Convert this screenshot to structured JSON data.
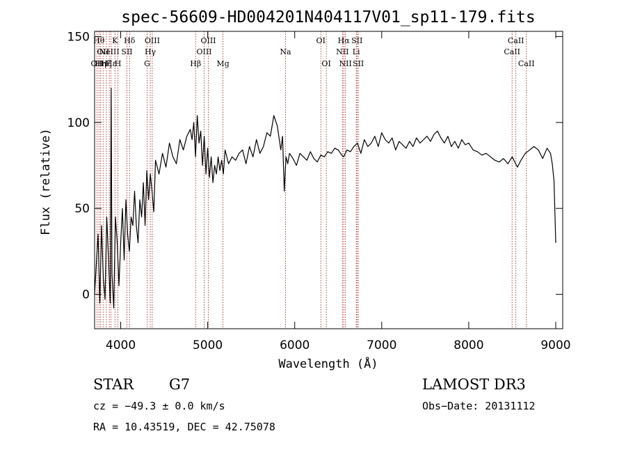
{
  "chart_data": {
    "type": "line",
    "title": "spec-56609-HD004201N404117V01_sp11-179.fits",
    "xlabel": "Wavelength (Å)",
    "ylabel": "Flux (relative)",
    "xlim": [
      3700,
      9080
    ],
    "ylim": [
      -20,
      153
    ],
    "x_ticks": [
      {
        "value": 4000,
        "label": "4000"
      },
      {
        "value": 5000,
        "label": "5000"
      },
      {
        "value": 6000,
        "label": "6000"
      },
      {
        "value": 7000,
        "label": "7000"
      },
      {
        "value": 8000,
        "label": "8000"
      },
      {
        "value": 9000,
        "label": "9000"
      }
    ],
    "y_ticks": [
      {
        "value": 0,
        "label": "0"
      },
      {
        "value": 50,
        "label": "50"
      },
      {
        "value": 100,
        "label": "100"
      },
      {
        "value": 150,
        "label": "150"
      }
    ],
    "grid": false,
    "series": [
      {
        "color": "#000000",
        "x": [
          3700,
          3720,
          3740,
          3760,
          3780,
          3800,
          3820,
          3840,
          3860,
          3880,
          3890,
          3900,
          3920,
          3940,
          3960,
          3980,
          4000,
          4020,
          4040,
          4060,
          4080,
          4100,
          4120,
          4140,
          4160,
          4180,
          4200,
          4220,
          4240,
          4260,
          4280,
          4300,
          4320,
          4340,
          4360,
          4380,
          4400,
          4440,
          4480,
          4520,
          4560,
          4600,
          4640,
          4680,
          4720,
          4760,
          4800,
          4820,
          4840,
          4860,
          4880,
          4900,
          4920,
          4940,
          4960,
          4980,
          5000,
          5020,
          5040,
          5060,
          5080,
          5100,
          5120,
          5140,
          5160,
          5180,
          5200,
          5240,
          5280,
          5320,
          5360,
          5400,
          5440,
          5480,
          5520,
          5560,
          5600,
          5640,
          5680,
          5720,
          5760,
          5800,
          5840,
          5860,
          5880,
          5900,
          5920,
          5940,
          5980,
          6020,
          6060,
          6100,
          6140,
          6180,
          6220,
          6260,
          6300,
          6340,
          6380,
          6420,
          6460,
          6500,
          6540,
          6563,
          6600,
          6640,
          6680,
          6720,
          6760,
          6800,
          6840,
          6880,
          6920,
          6960,
          7000,
          7040,
          7080,
          7120,
          7160,
          7200,
          7240,
          7280,
          7320,
          7360,
          7400,
          7440,
          7480,
          7520,
          7560,
          7600,
          7640,
          7680,
          7720,
          7760,
          7800,
          7840,
          7880,
          7920,
          7960,
          8000,
          8050,
          8100,
          8150,
          8200,
          8250,
          8300,
          8350,
          8400,
          8450,
          8500,
          8540,
          8560,
          8600,
          8650,
          8700,
          8750,
          8800,
          8850,
          8900,
          8940,
          8960,
          8980,
          9000
        ],
        "y": [
          0,
          18,
          35,
          -5,
          40,
          10,
          -3,
          45,
          20,
          -5,
          120,
          12,
          -8,
          45,
          30,
          5,
          30,
          50,
          20,
          55,
          35,
          25,
          45,
          40,
          60,
          40,
          30,
          55,
          45,
          65,
          40,
          72,
          55,
          70,
          60,
          48,
          78,
          70,
          82,
          74,
          88,
          80,
          76,
          90,
          84,
          92,
          96,
          90,
          100,
          80,
          104,
          88,
          95,
          75,
          92,
          70,
          85,
          68,
          80,
          65,
          75,
          70,
          80,
          72,
          78,
          70,
          84,
          76,
          80,
          78,
          82,
          84,
          76,
          86,
          80,
          90,
          82,
          86,
          94,
          92,
          104,
          98,
          84,
          92,
          60,
          80,
          76,
          82,
          79,
          75,
          82,
          80,
          78,
          83,
          79,
          77,
          81,
          80,
          83,
          82,
          85,
          84,
          81,
          80,
          84,
          83,
          86,
          88,
          82,
          90,
          86,
          88,
          92,
          86,
          94,
          90,
          88,
          91,
          84,
          89,
          87,
          85,
          89,
          86,
          91,
          88,
          90,
          92,
          89,
          93,
          95,
          91,
          88,
          92,
          86,
          89,
          85,
          90,
          87,
          88,
          84,
          83,
          81,
          82,
          80,
          78,
          77,
          79,
          76,
          80,
          76,
          74,
          78,
          82,
          84,
          86,
          84,
          79,
          85,
          82,
          76,
          66,
          30
        ]
      }
    ],
    "line_markers": [
      {
        "wl": 3727,
        "label": "OII",
        "row": 3
      },
      {
        "wl": 3750,
        "label": "Hθ",
        "row": 1
      },
      {
        "wl": 3770,
        "label": "Hη",
        "row": 3
      },
      {
        "wl": 3798,
        "label": "OII",
        "row": 2
      },
      {
        "wl": 3835,
        "label": "Hζ",
        "row": 3
      },
      {
        "wl": 3869,
        "label": "NeIII",
        "row": 2
      },
      {
        "wl": 3889,
        "label": "Hε",
        "row": 3
      },
      {
        "wl": 3934,
        "label": "K",
        "row": 1
      },
      {
        "wl": 3968,
        "label": "H",
        "row": 3
      },
      {
        "wl": 4072,
        "label": "SII",
        "row": 2
      },
      {
        "wl": 4102,
        "label": "Hδ",
        "row": 1
      },
      {
        "wl": 4304,
        "label": "G",
        "row": 3
      },
      {
        "wl": 4340,
        "label": "Hγ",
        "row": 2
      },
      {
        "wl": 4363,
        "label": "OIII",
        "row": 1
      },
      {
        "wl": 4861,
        "label": "Hβ",
        "row": 3
      },
      {
        "wl": 4959,
        "label": "OIII",
        "row": 2
      },
      {
        "wl": 5007,
        "label": "OIII",
        "row": 1
      },
      {
        "wl": 5175,
        "label": "Mg",
        "row": 3
      },
      {
        "wl": 5894,
        "label": "Na",
        "row": 2
      },
      {
        "wl": 6300,
        "label": "OI",
        "row": 1
      },
      {
        "wl": 6363,
        "label": "OI",
        "row": 3
      },
      {
        "wl": 6548,
        "label": "NII",
        "row": 2
      },
      {
        "wl": 6563,
        "label": "Hα",
        "row": 1
      },
      {
        "wl": 6583,
        "label": "NII",
        "row": 3
      },
      {
        "wl": 6707,
        "label": "Li",
        "row": 2
      },
      {
        "wl": 6716,
        "label": "SII",
        "row": 1
      },
      {
        "wl": 6731,
        "label": "SII",
        "row": 3
      },
      {
        "wl": 8498,
        "label": "CaII",
        "row": 2
      },
      {
        "wl": 8542,
        "label": "CaII",
        "row": 1
      },
      {
        "wl": 8662,
        "label": "CaII",
        "row": 3
      }
    ]
  },
  "info": {
    "class": "STAR",
    "subclass": "G7",
    "survey": "LAMOST DR3",
    "cz": "cz = −49.3 ± 0.0 km/s",
    "obs_date": "Obs−Date: 20131112",
    "coords": "RA =  10.43519, DEC =  42.75078"
  },
  "colors": {
    "marker": "#a01010",
    "spectrum": "#000000"
  }
}
